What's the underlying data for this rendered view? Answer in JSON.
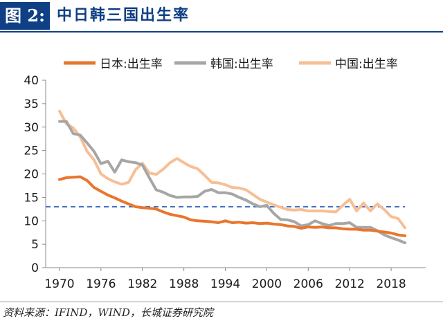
{
  "header": {
    "figure_label": "图 2:",
    "title": "中日韩三国出生率"
  },
  "source": "资料来源：IFIND，WIND，长城证券研究院",
  "colors": {
    "header_blue": "#0f3f84",
    "japan": "#e8762d",
    "korea": "#a6a6a6",
    "china": "#f7bf95",
    "reference_line": "#3f6fc6"
  },
  "chart_data": {
    "type": "line",
    "title": "",
    "xlabel": "",
    "ylabel": "",
    "xlim": [
      1968,
      2023
    ],
    "ylim": [
      0,
      40
    ],
    "yticks": [
      0,
      5,
      10,
      15,
      20,
      25,
      30,
      35,
      40
    ],
    "xticks": [
      1970,
      1976,
      1982,
      1988,
      1994,
      2000,
      2006,
      2012,
      2018
    ],
    "grid": false,
    "legend_position": "top",
    "reference_line": {
      "y": 13,
      "style": "dashed"
    },
    "series": [
      {
        "name": "日本:出生率",
        "color": "#e8762d",
        "x": [
          1970,
          1971,
          1972,
          1973,
          1974,
          1975,
          1976,
          1977,
          1978,
          1979,
          1980,
          1981,
          1982,
          1983,
          1984,
          1985,
          1986,
          1987,
          1988,
          1989,
          1990,
          1991,
          1992,
          1993,
          1994,
          1995,
          1996,
          1997,
          1998,
          1999,
          2000,
          2001,
          2002,
          2003,
          2004,
          2005,
          2006,
          2007,
          2008,
          2009,
          2010,
          2011,
          2012,
          2013,
          2014,
          2015,
          2016,
          2017,
          2018,
          2019,
          2020
        ],
        "values": [
          18.8,
          19.2,
          19.3,
          19.4,
          18.6,
          17.1,
          16.3,
          15.5,
          14.9,
          14.2,
          13.6,
          13.0,
          12.8,
          12.7,
          12.5,
          11.9,
          11.4,
          11.1,
          10.8,
          10.2,
          10.0,
          9.9,
          9.8,
          9.6,
          10.0,
          9.6,
          9.7,
          9.5,
          9.6,
          9.4,
          9.5,
          9.3,
          9.2,
          8.9,
          8.8,
          8.4,
          8.7,
          8.6,
          8.7,
          8.5,
          8.5,
          8.3,
          8.2,
          8.2,
          8.0,
          8.0,
          7.8,
          7.6,
          7.4,
          7.0,
          6.8
        ]
      },
      {
        "name": "韩国:出生率",
        "color": "#a6a6a6",
        "x": [
          1970,
          1971,
          1972,
          1973,
          1974,
          1975,
          1976,
          1977,
          1978,
          1979,
          1980,
          1981,
          1982,
          1983,
          1984,
          1985,
          1986,
          1987,
          1988,
          1989,
          1990,
          1991,
          1992,
          1993,
          1994,
          1995,
          1996,
          1997,
          1998,
          1999,
          2000,
          2001,
          2002,
          2003,
          2004,
          2005,
          2006,
          2007,
          2008,
          2009,
          2010,
          2011,
          2012,
          2013,
          2014,
          2015,
          2016,
          2017,
          2018,
          2019,
          2020
        ],
        "values": [
          31.2,
          31.2,
          28.6,
          28.3,
          26.6,
          24.8,
          22.2,
          22.7,
          20.4,
          23.0,
          22.6,
          22.4,
          21.9,
          19.2,
          16.6,
          16.1,
          15.4,
          15.0,
          15.1,
          15.1,
          15.2,
          16.3,
          16.7,
          16.0,
          16.0,
          15.7,
          15.0,
          14.4,
          13.6,
          13.0,
          13.3,
          11.6,
          10.3,
          10.2,
          9.8,
          8.9,
          9.2,
          10.0,
          9.4,
          9.0,
          9.4,
          9.4,
          9.6,
          8.6,
          8.6,
          8.6,
          7.9,
          7.0,
          6.4,
          5.9,
          5.3
        ]
      },
      {
        "name": "中国:出生率",
        "color": "#f7bf95",
        "x": [
          1970,
          1971,
          1972,
          1973,
          1974,
          1975,
          1976,
          1977,
          1978,
          1979,
          1980,
          1981,
          1982,
          1983,
          1984,
          1985,
          1986,
          1987,
          1988,
          1989,
          1990,
          1991,
          1992,
          1993,
          1994,
          1995,
          1996,
          1997,
          1998,
          1999,
          2000,
          2001,
          2002,
          2003,
          2004,
          2005,
          2006,
          2007,
          2008,
          2009,
          2010,
          2011,
          2012,
          2013,
          2014,
          2015,
          2016,
          2017,
          2018,
          2019,
          2020
        ],
        "values": [
          33.4,
          30.7,
          29.8,
          27.9,
          24.8,
          23.0,
          20.0,
          19.0,
          18.3,
          17.8,
          18.2,
          20.9,
          22.3,
          20.2,
          19.9,
          21.0,
          22.4,
          23.3,
          22.4,
          21.6,
          21.1,
          19.7,
          18.2,
          18.1,
          17.7,
          17.1,
          17.0,
          16.6,
          15.6,
          14.6,
          14.0,
          13.4,
          12.9,
          12.4,
          12.3,
          12.4,
          12.1,
          12.1,
          12.1,
          12.0,
          11.9,
          13.3,
          14.6,
          12.1,
          13.8,
          12.1,
          13.6,
          12.4,
          10.9,
          10.5,
          8.5
        ]
      }
    ]
  }
}
